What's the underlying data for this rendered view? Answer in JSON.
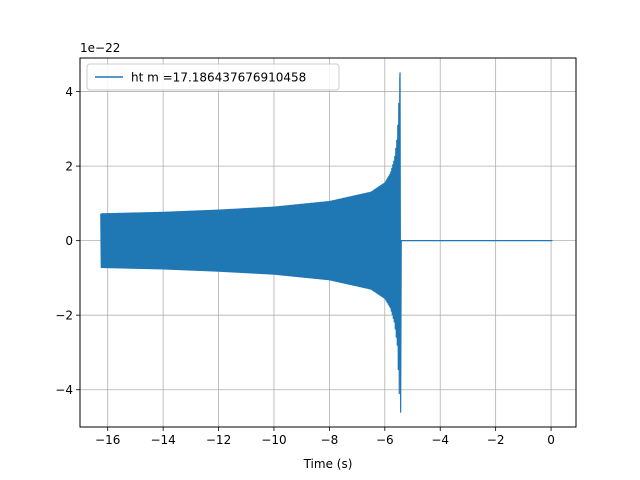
{
  "chart_data": {
    "type": "line",
    "title": "",
    "xlabel": "Time (s)",
    "ylabel": "",
    "y_offset_label": "1e−22",
    "xlim": [
      -17.0,
      0.9
    ],
    "ylim": [
      -5.0,
      4.9
    ],
    "x_ticks": [
      -16,
      -14,
      -12,
      -10,
      -8,
      -6,
      -4,
      -2,
      0
    ],
    "y_ticks": [
      -4,
      -2,
      0,
      2,
      4
    ],
    "x_tick_labels": [
      "−16",
      "−14",
      "−12",
      "−10",
      "−8",
      "−6",
      "−4",
      "−2",
      "0"
    ],
    "y_tick_labels": [
      "−4",
      "−2",
      "0",
      "2",
      "4"
    ],
    "grid": true,
    "legend": {
      "position": "upper-left",
      "entries": [
        "ht m =17.186437676910458"
      ]
    },
    "series": [
      {
        "name": "ht m =17.186437676910458",
        "color": "#1f77b4",
        "description_points": {
          "signal_start_x": -16.25,
          "merger_x": -5.45,
          "signal_end_x": 0.05,
          "envelope_x": [
            -16.25,
            -14.0,
            -12.0,
            -10.0,
            -8.0,
            -6.5,
            -6.0,
            -5.8,
            -5.65,
            -5.55,
            -5.5,
            -5.45
          ],
          "envelope_upper": [
            0.72,
            0.76,
            0.82,
            0.9,
            1.05,
            1.3,
            1.55,
            1.8,
            2.2,
            2.8,
            3.6,
            4.5
          ],
          "envelope_lower": [
            -0.72,
            -0.76,
            -0.82,
            -0.9,
            -1.05,
            -1.3,
            -1.55,
            -1.8,
            -2.2,
            -2.8,
            -3.7,
            -4.6
          ],
          "post_merger_value": 0.0
        }
      }
    ]
  }
}
